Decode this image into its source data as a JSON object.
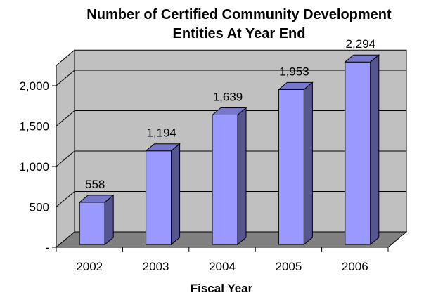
{
  "chart_data": {
    "type": "bar",
    "title_lines": [
      "Number of Certified Community Development",
      "Entities At Year End"
    ],
    "xlabel": "Fiscal Year",
    "ylabel": "",
    "categories": [
      "2002",
      "2003",
      "2004",
      "2005",
      "2006"
    ],
    "values": [
      558,
      1194,
      1639,
      1953,
      2294
    ],
    "value_labels": [
      "558",
      "1,194",
      "1,639",
      "1,953",
      "2,294"
    ],
    "y_ticks": [
      0,
      500,
      1000,
      1500,
      2000
    ],
    "y_tick_labels": [
      "-",
      "500",
      "1,000",
      "1,500",
      "2,000"
    ],
    "ylim": [
      0,
      2250
    ],
    "grid": true,
    "style": "3d-column",
    "colors": {
      "bar_front": "#9999ff",
      "bar_top": "#7777cc",
      "bar_side": "#55558f",
      "wall": "#c0c0c0",
      "floor": "#808080",
      "gridline": "#000000"
    }
  }
}
